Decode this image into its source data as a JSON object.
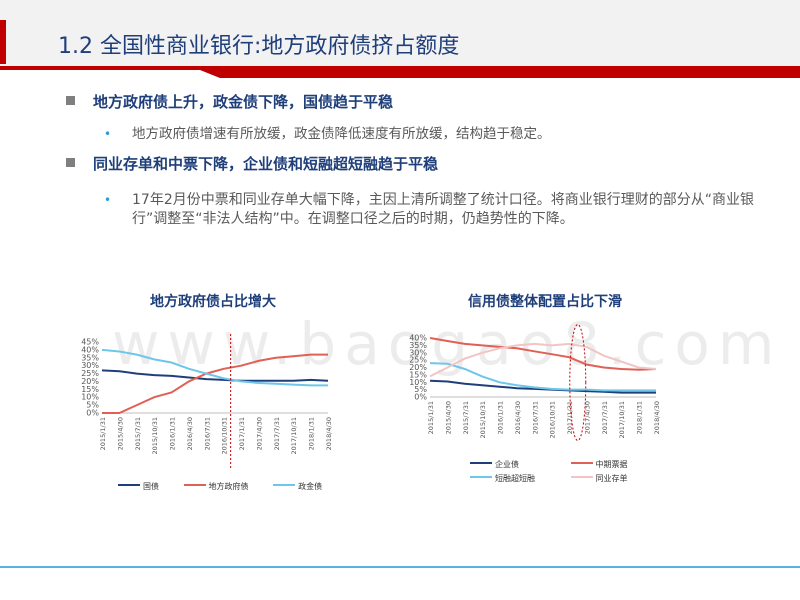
{
  "header": {
    "title": "1.2 全国性商业银行:地方政府债挤占额度"
  },
  "bullets": [
    {
      "heading": "地方政府债上升，政金债下降，国债趋于平稳",
      "sub": "地方政府债增速有所放缓，政金债降低速度有所放缓，结构趋于稳定。"
    },
    {
      "heading": "同业存单和中票下降，企业债和短融超短融趋于平稳",
      "sub": "17年2月份中票和同业存单大幅下降，主因上清所调整了统计口径。将商业银行理财的部分从“商业银行”调整至“非法人结构”中。在调整口径之后的时期，仍趋势性的下降。"
    }
  ],
  "watermark": "www.baogao8.com",
  "colors": {
    "header_red": "#c00000",
    "title_blue": "#1f3f7a",
    "accent_blue": "#2e9bd6"
  },
  "chart_data": [
    {
      "type": "line",
      "title": "地方政府债占比增大",
      "ylim": [
        0,
        45
      ],
      "yticks": [
        "0%",
        "5%",
        "10%",
        "15%",
        "20%",
        "25%",
        "30%",
        "35%",
        "40%",
        "45%"
      ],
      "categories": [
        "2015/1/31",
        "2015/4/30",
        "2015/7/31",
        "2015/10/31",
        "2016/1/31",
        "2016/4/30",
        "2016/7/31",
        "2016/10/31",
        "2017/1/31",
        "2017/4/30",
        "2017/7/31",
        "2017/10/31",
        "2018/1/31",
        "2018/4/30"
      ],
      "series": [
        {
          "name": "国债",
          "color": "#1f3f7a",
          "values": [
            27,
            26.5,
            25,
            24,
            23.5,
            22.5,
            21.5,
            21,
            20.5,
            20.5,
            20.5,
            20.5,
            21,
            20.5
          ]
        },
        {
          "name": "地方政府债",
          "color": "#e06055",
          "values": [
            0,
            0,
            5,
            10,
            13,
            20,
            25,
            28,
            30,
            33,
            35,
            36,
            37,
            37
          ]
        },
        {
          "name": "政金债",
          "color": "#6ec6ea",
          "values": [
            40,
            39,
            37,
            34,
            32,
            28,
            25,
            22,
            20,
            19,
            18.5,
            18,
            17.5,
            17.5
          ]
        }
      ],
      "legend": [
        "国债",
        "地方政府债",
        "政金债"
      ]
    },
    {
      "type": "line",
      "title": "信用债整体配置占比下滑",
      "ylim": [
        0,
        40
      ],
      "yticks": [
        "0%",
        "5%",
        "10%",
        "15%",
        "20%",
        "25%",
        "30%",
        "35%",
        "40%"
      ],
      "categories": [
        "2015/1/31",
        "2015/4/30",
        "2015/7/31",
        "2015/10/31",
        "2016/1/31",
        "2016/4/30",
        "2016/7/31",
        "2016/10/31",
        "2017/1/31",
        "2017/4/30",
        "2017/7/31",
        "2017/10/31",
        "2018/1/31",
        "2018/4/30"
      ],
      "series": [
        {
          "name": "企业债",
          "color": "#1f3f7a",
          "values": [
            11,
            10.5,
            9,
            8,
            7,
            6,
            5.5,
            5,
            4.5,
            4,
            3.5,
            3,
            3,
            3
          ]
        },
        {
          "name": "中期票据",
          "color": "#e06055",
          "values": [
            40,
            38,
            36,
            35,
            34,
            33,
            31,
            29,
            27,
            22,
            20,
            19,
            18.5,
            19
          ]
        },
        {
          "name": "短融超短融",
          "color": "#6ec6ea",
          "values": [
            23,
            22.5,
            19,
            14,
            10,
            8,
            6.5,
            5.5,
            5,
            5,
            4.5,
            4.5,
            4.5,
            4.5
          ]
        },
        {
          "name": "同业存单",
          "color": "#f2c4c4",
          "values": [
            14,
            20,
            26,
            30,
            33,
            35,
            36,
            35,
            36,
            34,
            28,
            24,
            20,
            19
          ]
        }
      ],
      "legend": [
        "企业债",
        "中期票据",
        "短融超短融",
        "同业存单"
      ]
    }
  ]
}
